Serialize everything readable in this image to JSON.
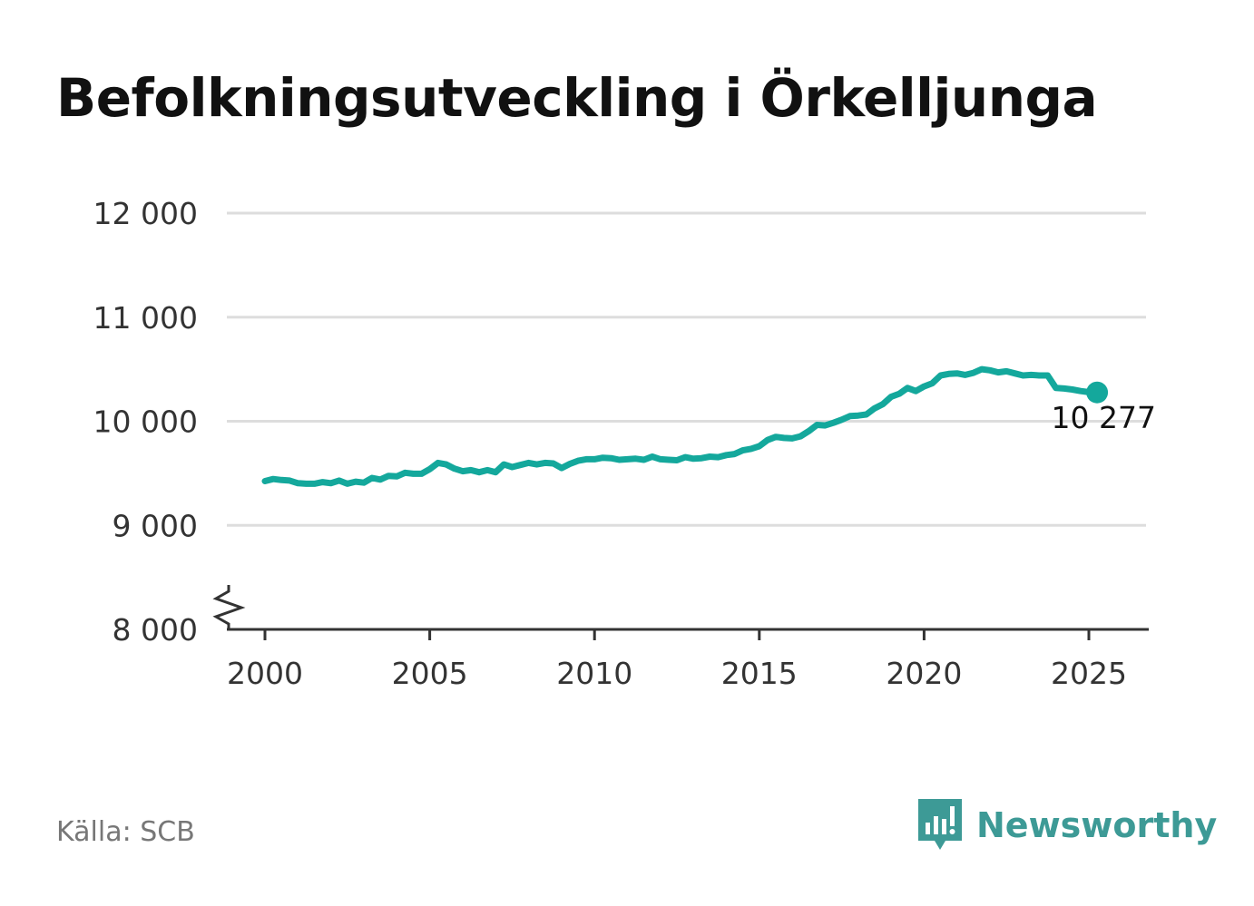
{
  "title": "Befolkningsutveckling i Örkelljunga",
  "source": "Källa: SCB",
  "brand": {
    "name": "Newsworthy",
    "icon": "newsworthy-logo-icon"
  },
  "colors": {
    "line": "#14a89c",
    "grid": "#dddddd",
    "axis": "#333333",
    "brand": "#3d9a96"
  },
  "chart_data": {
    "type": "line",
    "title": "Befolkningsutveckling i Örkelljunga",
    "xlim": [
      1999,
      2026.8
    ],
    "ylim": [
      8000,
      12000
    ],
    "y_axis_break": true,
    "grid": true,
    "x_ticks": [
      2000,
      2005,
      2010,
      2015,
      2020,
      2025
    ],
    "x_tick_labels": [
      "2000",
      "2005",
      "2010",
      "2015",
      "2020",
      "2025"
    ],
    "y_ticks": [
      8000,
      9000,
      10000,
      11000,
      12000
    ],
    "y_tick_labels": [
      "8 000",
      "9 000",
      "10 000",
      "11 000",
      "12 000"
    ],
    "end_label": "10 277",
    "series": [
      {
        "x": [
          2000.0,
          2000.25,
          2000.5,
          2000.75,
          2001.0,
          2001.25,
          2001.5,
          2001.75,
          2002.0,
          2002.25,
          2002.5,
          2002.75,
          2003.0,
          2003.25,
          2003.5,
          2003.75,
          2004.0,
          2004.25,
          2004.5,
          2004.75,
          2005.0,
          2005.25,
          2005.5,
          2005.75,
          2006.0,
          2006.25,
          2006.5,
          2006.75,
          2007.0,
          2007.25,
          2007.5,
          2007.75,
          2008.0,
          2008.25,
          2008.5,
          2008.75,
          2009.0,
          2009.25,
          2009.5,
          2009.75,
          2010.0,
          2010.25,
          2010.5,
          2010.75,
          2011.0,
          2011.25,
          2011.5,
          2011.75,
          2012.0,
          2012.25,
          2012.5,
          2012.75,
          2013.0,
          2013.25,
          2013.5,
          2013.75,
          2014.0,
          2014.25,
          2014.5,
          2014.75,
          2015.0,
          2015.25,
          2015.5,
          2015.75,
          2016.0,
          2016.25,
          2016.5,
          2016.75,
          2017.0,
          2017.25,
          2017.5,
          2017.75,
          2018.0,
          2018.25,
          2018.5,
          2018.75,
          2019.0,
          2019.25,
          2019.5,
          2019.75,
          2020.0,
          2020.25,
          2020.5,
          2020.75,
          2021.0,
          2021.25,
          2021.5,
          2021.75,
          2022.0,
          2022.25,
          2022.5,
          2022.75,
          2023.0,
          2023.25,
          2023.5,
          2023.75,
          2024.0,
          2024.25,
          2024.5,
          2024.75,
          2025.0,
          2025.25
        ],
        "values": [
          9425,
          9445,
          9435,
          9430,
          9405,
          9400,
          9400,
          9415,
          9405,
          9430,
          9400,
          9420,
          9410,
          9455,
          9440,
          9475,
          9470,
          9505,
          9495,
          9495,
          9540,
          9600,
          9585,
          9545,
          9520,
          9530,
          9510,
          9530,
          9510,
          9585,
          9560,
          9580,
          9600,
          9585,
          9600,
          9595,
          9550,
          9590,
          9620,
          9635,
          9635,
          9650,
          9645,
          9630,
          9635,
          9640,
          9630,
          9660,
          9635,
          9630,
          9625,
          9655,
          9640,
          9645,
          9660,
          9655,
          9675,
          9685,
          9720,
          9735,
          9760,
          9820,
          9850,
          9840,
          9835,
          9855,
          9905,
          9965,
          9960,
          9985,
          10015,
          10050,
          10055,
          10065,
          10125,
          10165,
          10235,
          10265,
          10320,
          10290,
          10335,
          10365,
          10440,
          10455,
          10460,
          10445,
          10465,
          10500,
          10490,
          10470,
          10480,
          10460,
          10440,
          10445,
          10440,
          10440,
          10320,
          10315,
          10305,
          10290,
          10280,
          10277
        ]
      }
    ]
  }
}
